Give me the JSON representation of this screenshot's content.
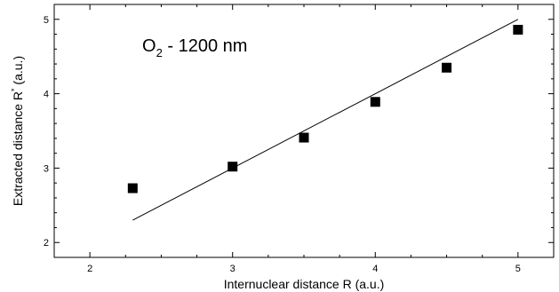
{
  "chart_data": {
    "type": "scatter",
    "title": "",
    "annotation": {
      "main": "O",
      "subscript": "2",
      "rest": " - 1200 nm"
    },
    "xlabel": "Internuclear distance R  (a.u.)",
    "ylabel": {
      "main": "Extracted distance R",
      "superscript": "*",
      "rest": " (a.u.)"
    },
    "xlim": [
      1.75,
      5.25
    ],
    "ylim": [
      1.8,
      5.2
    ],
    "xticks": [
      "2",
      "3",
      "4",
      "5"
    ],
    "yticks": [
      "2",
      "3",
      "4",
      "5"
    ],
    "x_tick_values": [
      2,
      3,
      4,
      5
    ],
    "y_tick_values": [
      2,
      3,
      4,
      5
    ],
    "series": [
      {
        "type": "scatter",
        "marker": "square",
        "color": "#000000",
        "x": [
          2.3,
          3.0,
          3.5,
          4.0,
          4.5,
          5.0
        ],
        "y": [
          2.73,
          3.02,
          3.41,
          3.89,
          4.35,
          4.86
        ]
      },
      {
        "type": "line",
        "color": "#000000",
        "x": [
          2.3,
          5.0
        ],
        "y": [
          2.3,
          5.0
        ]
      }
    ],
    "grid": false
  }
}
